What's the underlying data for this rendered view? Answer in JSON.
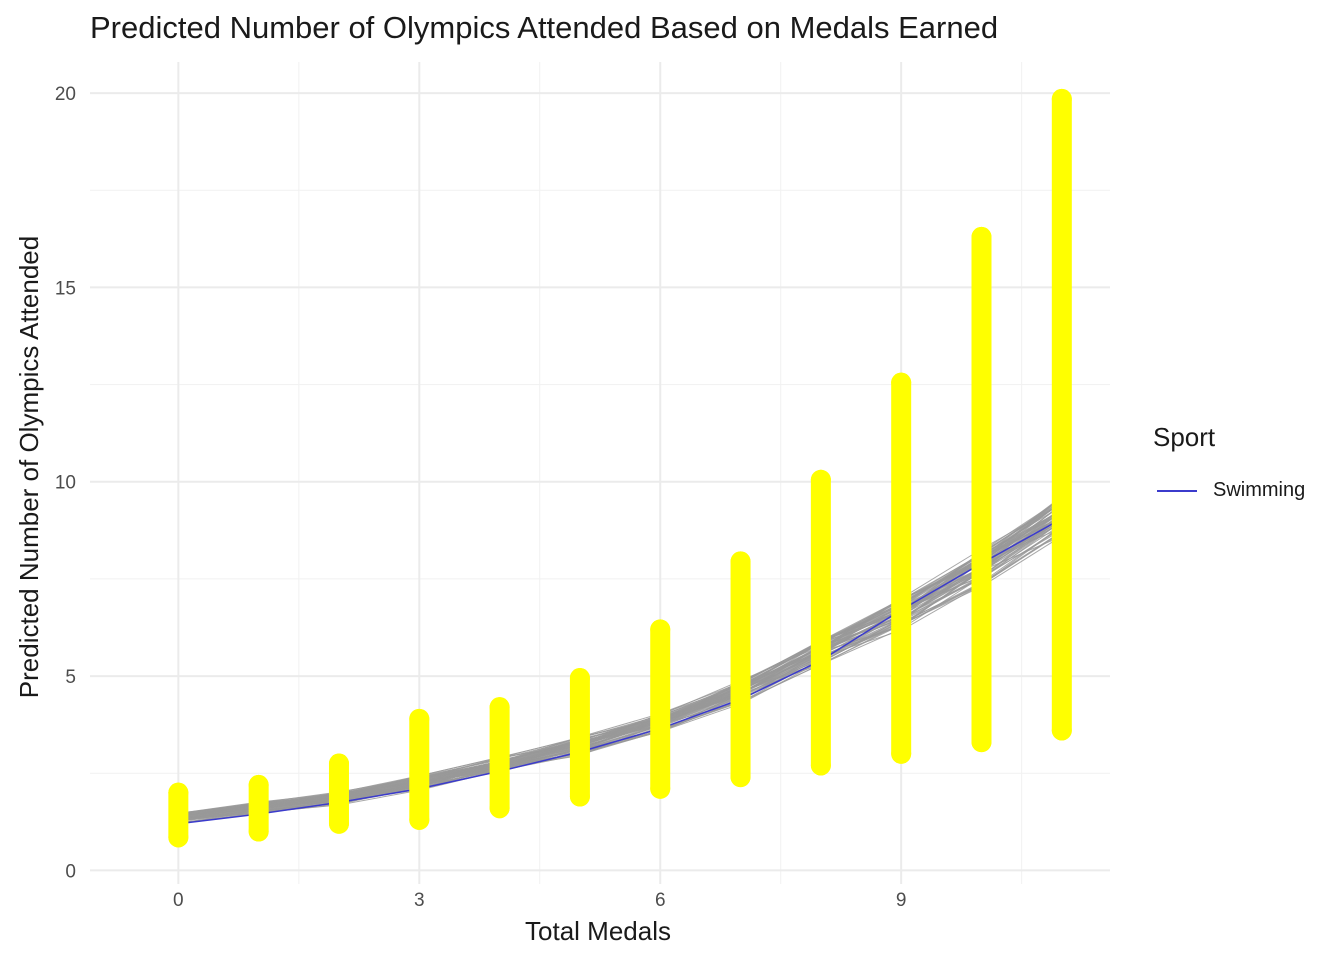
{
  "chart_data": {
    "type": "line",
    "title": "Predicted Number of Olympics Attended Based on Medals Earned",
    "xlabel": "Total Medals",
    "ylabel": "Predicted Number of Olympics Attended",
    "xlim": [
      -1.1,
      11.6
    ],
    "ylim": [
      -0.35,
      20.8
    ],
    "x_ticks": [
      0,
      3,
      6,
      9
    ],
    "y_ticks": [
      0,
      5,
      10,
      15,
      20
    ],
    "grid": true,
    "legend": {
      "title": "Sport",
      "placement": "right"
    },
    "series": [
      {
        "name": "Swimming",
        "color": "#3b3bcc",
        "x": [
          0,
          1,
          2,
          3,
          4,
          5,
          6,
          7,
          8,
          9,
          10,
          11
        ],
        "y": [
          1.2,
          1.45,
          1.75,
          2.1,
          2.55,
          3.05,
          3.65,
          4.4,
          5.4,
          6.7,
          7.9,
          9.05
        ]
      }
    ],
    "simulated_draws": {
      "color": "#999999",
      "count": 60,
      "x": [
        0,
        1,
        2,
        3,
        4,
        5,
        6,
        7,
        8,
        9,
        10,
        11
      ],
      "y_center": [
        1.35,
        1.6,
        1.85,
        2.25,
        2.7,
        3.2,
        3.8,
        4.6,
        5.6,
        6.6,
        7.8,
        9.1
      ]
    },
    "prediction_points": {
      "color": "#ffff00",
      "x": [
        0,
        1,
        2,
        3,
        4,
        5,
        6,
        7,
        8,
        9,
        10,
        11
      ],
      "y_min": [
        0.85,
        1.0,
        1.2,
        1.3,
        1.6,
        1.9,
        2.1,
        2.4,
        2.7,
        3.0,
        3.3,
        3.6
      ],
      "y_max": [
        2.0,
        2.2,
        2.75,
        3.9,
        4.2,
        4.95,
        6.2,
        7.95,
        10.05,
        12.55,
        16.3,
        19.85
      ]
    }
  }
}
